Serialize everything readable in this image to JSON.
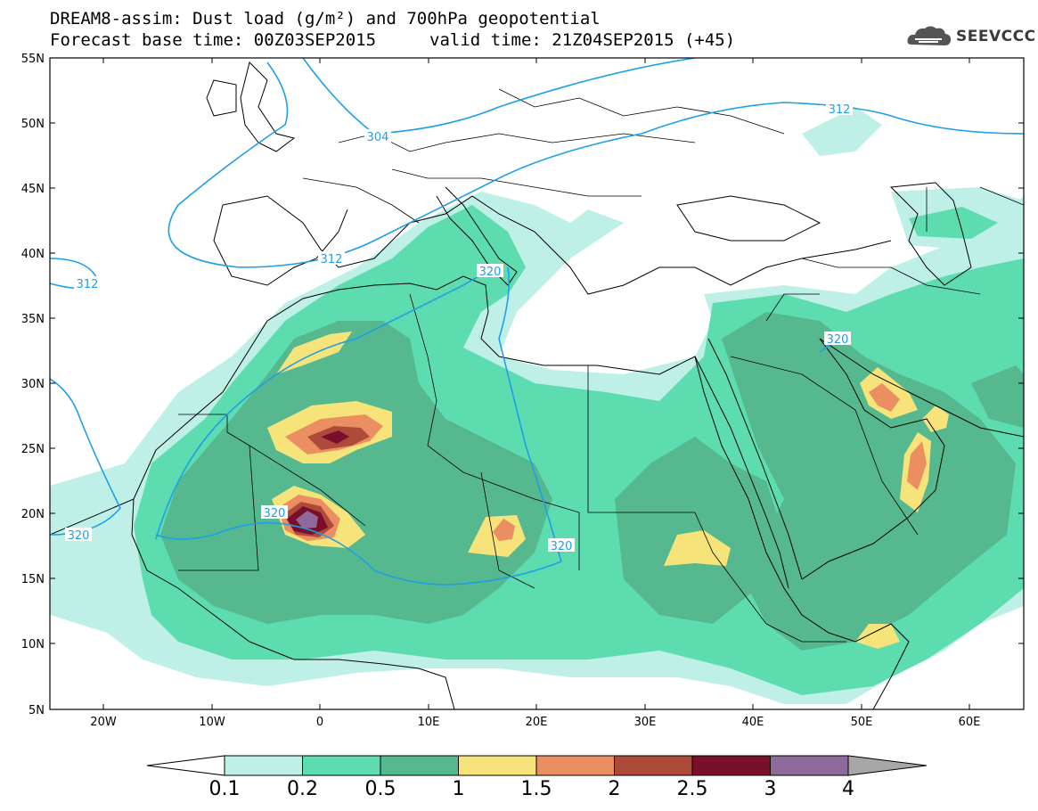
{
  "title": {
    "line1": "DREAM8-assim: Dust load (g/m²) and 700hPa geopotential",
    "line2_left": "Forecast base time: 00Z03SEP2015",
    "line2_right": "valid time: 21Z04SEP2015 (+45)"
  },
  "logo": {
    "text": "SEEVCCC",
    "icon": "cloud-logo-icon"
  },
  "map": {
    "lat_labels": [
      "55N",
      "50N",
      "45N",
      "40N",
      "35N",
      "30N",
      "25N",
      "20N",
      "15N",
      "10N",
      "5N"
    ],
    "lon_labels": [
      "20W",
      "10W",
      "0",
      "10E",
      "20E",
      "30E",
      "40E",
      "50E",
      "60E"
    ],
    "contour_labels": [
      {
        "text": "304"
      },
      {
        "text": "312"
      },
      {
        "text": "312"
      },
      {
        "text": "312"
      },
      {
        "text": "320"
      },
      {
        "text": "320"
      },
      {
        "text": "320"
      },
      {
        "text": "320"
      },
      {
        "text": "320"
      }
    ]
  },
  "colorbar": {
    "labels": [
      "0.1",
      "0.2",
      "0.5",
      "1",
      "1.5",
      "2",
      "2.5",
      "3",
      "4"
    ],
    "colors": [
      "#ffffff",
      "#bff0e8",
      "#5ddcb0",
      "#55b88e",
      "#f6e37a",
      "#eb8f62",
      "#ad4a39",
      "#7a0f2c",
      "#8e6a9c",
      "#a7a7a7"
    ]
  },
  "colors": {
    "contour": "#1e9fe8",
    "dust_0.1": "#bff0e8",
    "dust_0.2": "#5ddcb0",
    "dust_0.5": "#55b88e",
    "dust_1": "#f6e37a",
    "dust_1.5": "#eb8f62",
    "dust_2": "#ad4a39",
    "dust_2.5": "#7a0f2c",
    "dust_3": "#8e6a9c"
  }
}
